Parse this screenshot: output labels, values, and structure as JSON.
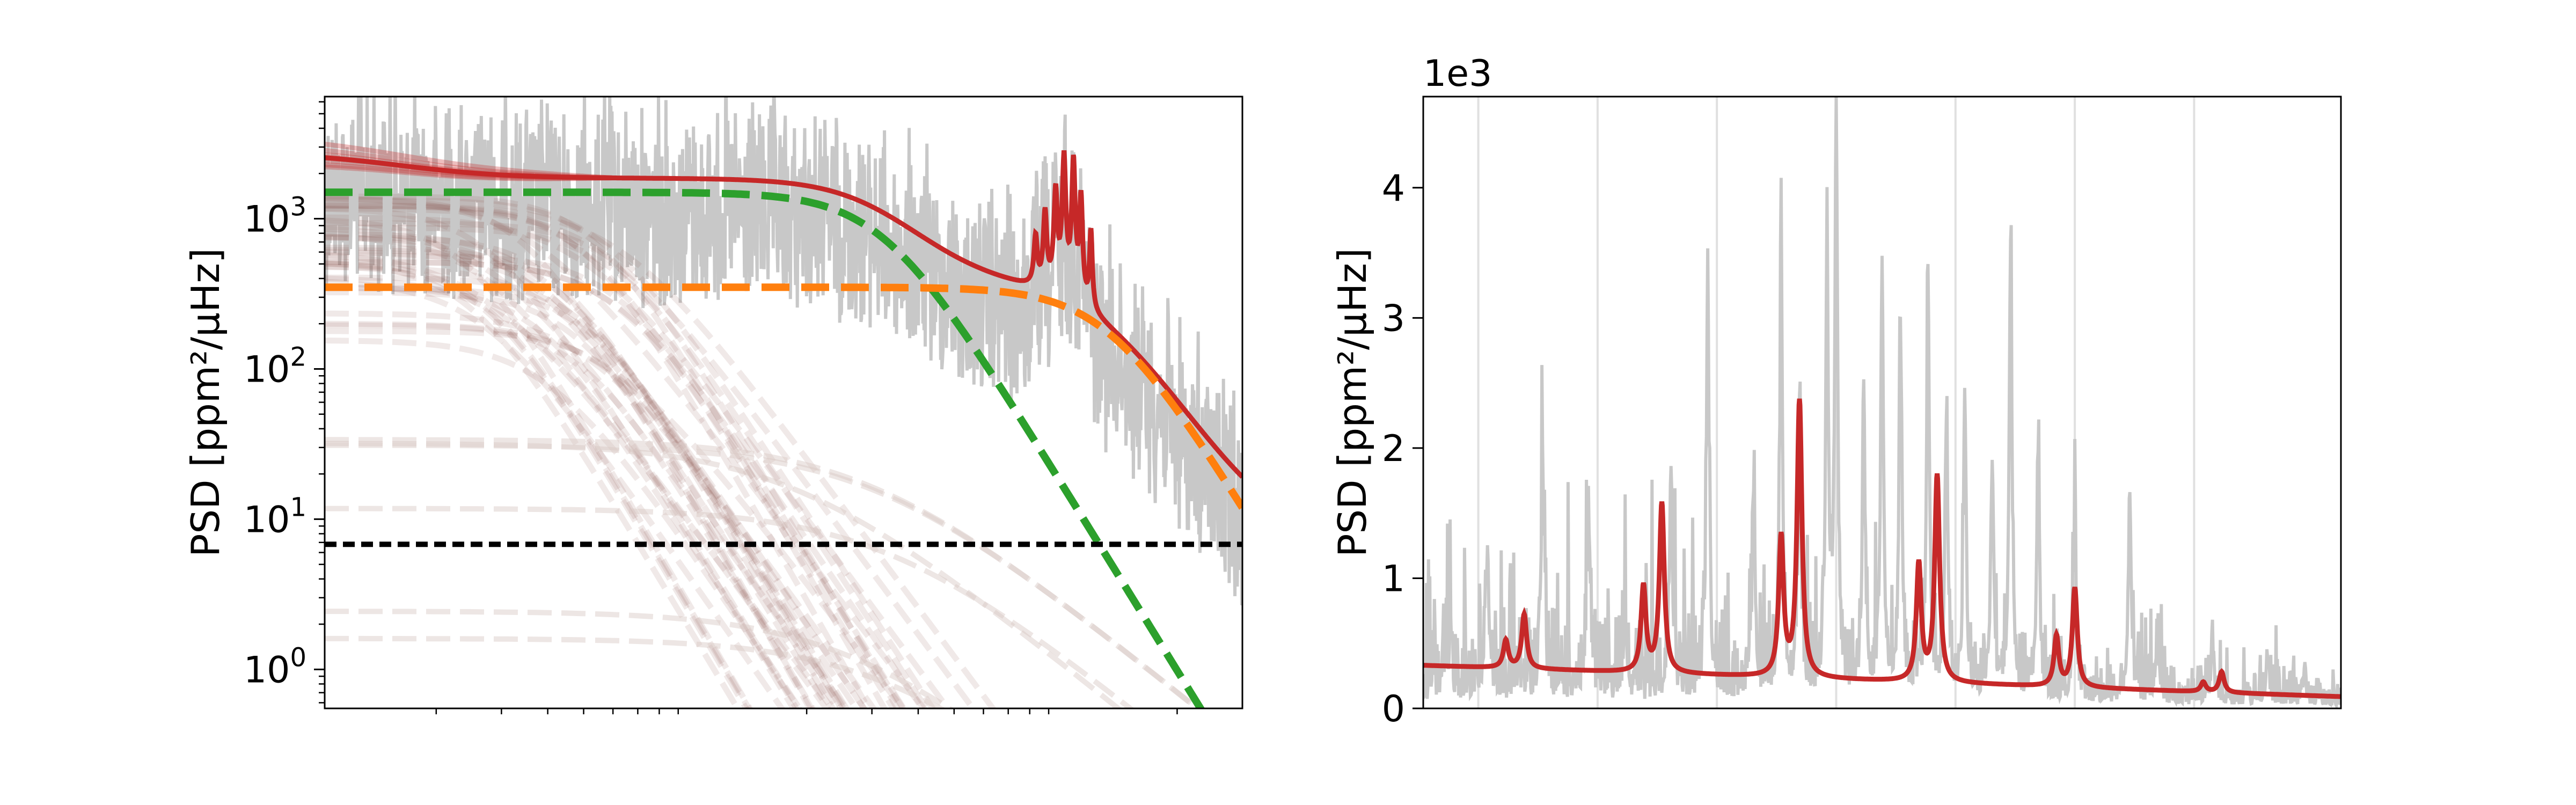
{
  "chart_data": [
    {
      "panel": "left",
      "type": "line",
      "yscale": "log",
      "xscale": "log",
      "ylabel": "PSD [ppm²/μHz]",
      "xlabel": "",
      "ylim": [
        0.55,
        6500
      ],
      "xlim": [
        1,
        300
      ],
      "yticks": [
        {
          "value": 1,
          "base": "10",
          "exp": "0"
        },
        {
          "value": 10,
          "base": "10",
          "exp": "1"
        },
        {
          "value": 100,
          "base": "10",
          "exp": "2"
        },
        {
          "value": 1000,
          "base": "10",
          "exp": "3"
        }
      ],
      "x_minor_ticks": [
        2,
        3,
        4,
        5,
        6,
        7,
        8,
        9,
        20,
        30,
        40,
        50,
        60,
        70,
        80,
        90,
        200
      ],
      "grid": false,
      "colors": {
        "observed": "#c8c8c8",
        "model": "#c62828",
        "granulation_low": "#2ca02c",
        "granulation_high": "#ff7f0e",
        "white_noise": "#000000",
        "samples": "#8c564b"
      },
      "series": [
        {
          "role": "observed_psd",
          "x": [
            1,
            2,
            5,
            10,
            20,
            50,
            80,
            110,
            150,
            200,
            300
          ],
          "y": [
            2600,
            2300,
            1900,
            2000,
            1800,
            1500,
            900,
            700,
            300,
            60,
            12
          ]
        },
        {
          "role": "model_fit",
          "x": [
            1,
            2,
            5,
            10,
            20,
            40,
            60,
            80,
            100,
            120,
            150,
            200,
            250,
            300
          ],
          "y": [
            2600,
            1900,
            1800,
            1790,
            1750,
            1500,
            900,
            600,
            480,
            380,
            180,
            40,
            14,
            9
          ]
        },
        {
          "role": "granulation_component_1",
          "params": {
            "amplitude": 1500,
            "knee": 32,
            "exponent": 4
          }
        },
        {
          "role": "granulation_component_2",
          "params": {
            "amplitude": 350,
            "knee": 130,
            "exponent": 4
          }
        },
        {
          "role": "white_noise_level",
          "value": 6.8
        },
        {
          "role": "mode_peaks",
          "x": [
            83,
            88,
            94,
            99,
            105,
            110,
            117
          ],
          "y": [
            420,
            800,
            1300,
            2400,
            2300,
            1200,
            600
          ]
        }
      ]
    },
    {
      "panel": "right",
      "type": "line",
      "yscale": "linear",
      "ylabel": "PSD [ppm²/μHz]",
      "xlabel": "",
      "y_offset_text": "1e3",
      "ylim": [
        0,
        4.7
      ],
      "xlim": [
        0,
        100
      ],
      "yticks": [
        0,
        1,
        2,
        3,
        4
      ],
      "grid": false,
      "colors": {
        "observed": "#c8c8c8",
        "model": "#c62828",
        "guides": "#e0e0e0"
      },
      "vertical_guides": [
        6,
        19,
        32,
        45,
        58,
        71,
        84
      ],
      "series": [
        {
          "role": "model_fit",
          "baseline_start": 0.33,
          "baseline_end": 0.09,
          "peaks": [
            {
              "x": 9,
              "y": 0.52
            },
            {
              "x": 11,
              "y": 0.72
            },
            {
              "x": 24,
              "y": 0.93
            },
            {
              "x": 26,
              "y": 1.57
            },
            {
              "x": 39,
              "y": 1.3
            },
            {
              "x": 41,
              "y": 2.35
            },
            {
              "x": 54,
              "y": 1.1
            },
            {
              "x": 56,
              "y": 1.78
            },
            {
              "x": 69,
              "y": 0.55
            },
            {
              "x": 71,
              "y": 0.92
            },
            {
              "x": 85,
              "y": 0.2
            },
            {
              "x": 87,
              "y": 0.28
            }
          ]
        },
        {
          "role": "observed_psd_spikes",
          "peaks": [
            {
              "x": 3,
              "y": 0.6
            },
            {
              "x": 7,
              "y": 1.4
            },
            {
              "x": 13,
              "y": 2.15
            },
            {
              "x": 18,
              "y": 1.7
            },
            {
              "x": 22,
              "y": 0.95
            },
            {
              "x": 27,
              "y": 2.05
            },
            {
              "x": 31,
              "y": 3.5
            },
            {
              "x": 36,
              "y": 1.8
            },
            {
              "x": 39,
              "y": 3.65
            },
            {
              "x": 41,
              "y": 2.4
            },
            {
              "x": 44,
              "y": 3.65
            },
            {
              "x": 45,
              "y": 4.7
            },
            {
              "x": 48,
              "y": 2.5
            },
            {
              "x": 50,
              "y": 3.55
            },
            {
              "x": 52,
              "y": 3.05
            },
            {
              "x": 55,
              "y": 3.5
            },
            {
              "x": 57,
              "y": 2.3
            },
            {
              "x": 59,
              "y": 2.45
            },
            {
              "x": 62,
              "y": 2.0
            },
            {
              "x": 64,
              "y": 3.65
            },
            {
              "x": 67,
              "y": 2.0
            },
            {
              "x": 71,
              "y": 1.6
            },
            {
              "x": 77,
              "y": 1.7
            },
            {
              "x": 80,
              "y": 0.55
            },
            {
              "x": 86,
              "y": 0.55
            },
            {
              "x": 92,
              "y": 0.45
            },
            {
              "x": 96,
              "y": 0.3
            }
          ]
        }
      ]
    }
  ]
}
